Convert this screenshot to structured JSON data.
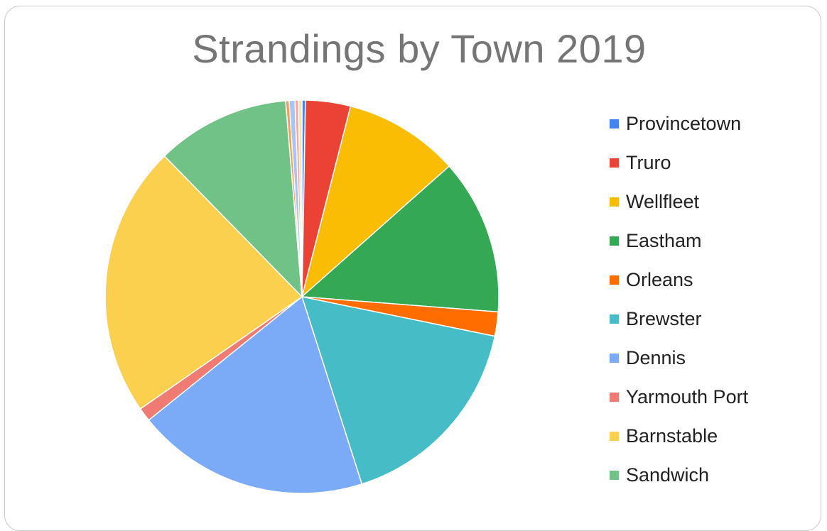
{
  "chart_data": {
    "type": "pie",
    "title": "Strandings by Town 2019",
    "legend_position": "right",
    "start_angle_deg": 0,
    "direction": "clockwise",
    "slices": [
      {
        "name": "Provincetown",
        "value": 0.3,
        "color": "#4285f4"
      },
      {
        "name": "Truro",
        "value": 3.9,
        "color": "#ea4335"
      },
      {
        "name": "Wellfleet",
        "value": 10.0,
        "color": "#fbbc04"
      },
      {
        "name": "Eastham",
        "value": 13.5,
        "color": "#34a853"
      },
      {
        "name": "Orleans",
        "value": 2.1,
        "color": "#ff6d01"
      },
      {
        "name": "Brewster",
        "value": 17.8,
        "color": "#46bdc6"
      },
      {
        "name": "Dennis",
        "value": 20.2,
        "color": "#7baaf7"
      },
      {
        "name": "Yarmouth Port",
        "value": 1.2,
        "color": "#f07b72"
      },
      {
        "name": "Barnstable",
        "value": 23.6,
        "color": "#fcd04f"
      },
      {
        "name": "Sandwich",
        "value": 11.6,
        "color": "#71c287"
      },
      {
        "name": "",
        "value": 0.3,
        "color": "#ff994d"
      },
      {
        "name": "",
        "value": 0.5,
        "color": "#a7c4f7"
      },
      {
        "name": "",
        "value": 0.3,
        "color": "#f7a59e"
      },
      {
        "name": "",
        "value": 0.3,
        "color": "#fde39a"
      }
    ]
  }
}
